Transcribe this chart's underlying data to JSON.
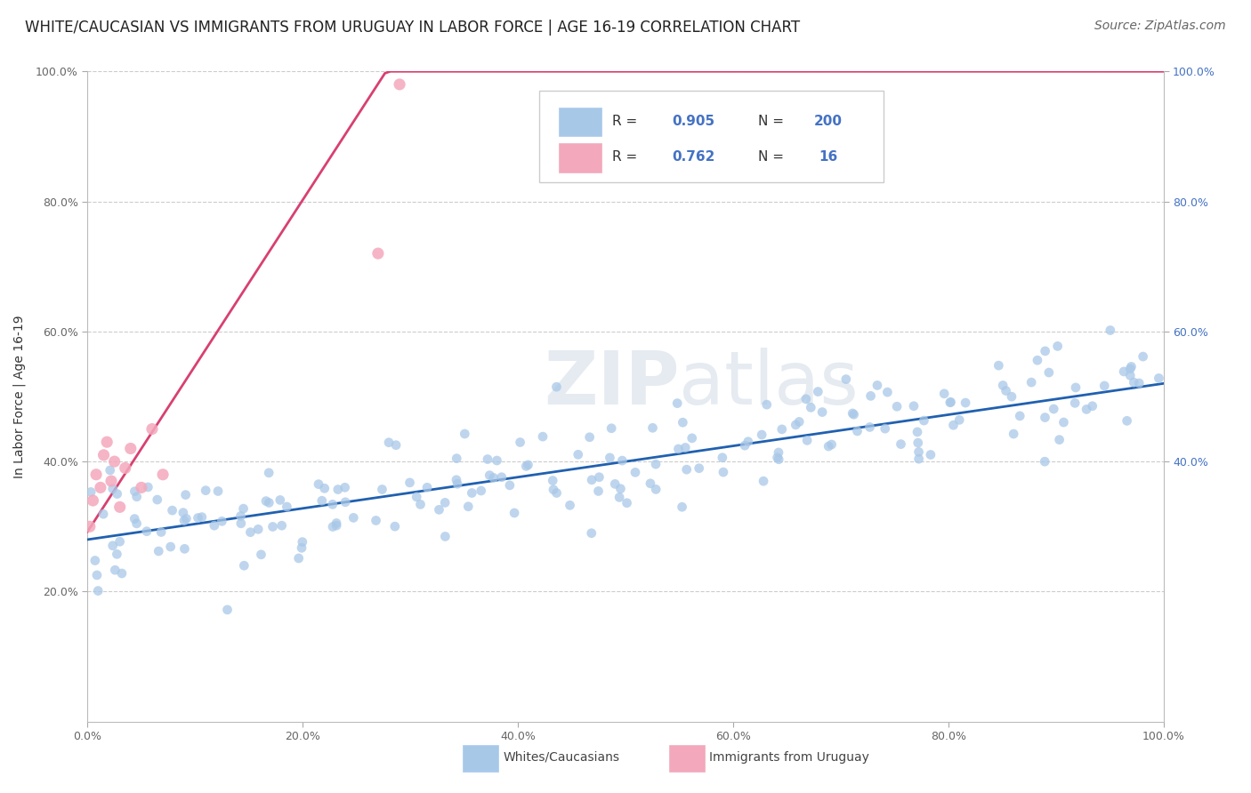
{
  "title": "WHITE/CAUCASIAN VS IMMIGRANTS FROM URUGUAY IN LABOR FORCE | AGE 16-19 CORRELATION CHART",
  "source": "Source: ZipAtlas.com",
  "ylabel": "In Labor Force | Age 16-19",
  "blue_R": 0.905,
  "blue_N": 200,
  "pink_R": 0.762,
  "pink_N": 16,
  "blue_color": "#a8c8e8",
  "pink_color": "#f4a8bc",
  "blue_line_color": "#2060b0",
  "pink_line_color": "#d84070",
  "xlim": [
    0,
    1
  ],
  "ylim": [
    0,
    1
  ],
  "legend_label_blue": "Whites/Caucasians",
  "legend_label_pink": "Immigrants from Uruguay",
  "background_color": "#ffffff",
  "grid_color": "#cccccc",
  "text_color": "#4472c4",
  "label_color": "#333333",
  "tick_color": "#666666",
  "right_tick_color": "#4472c4",
  "title_fontsize": 12,
  "source_fontsize": 10,
  "axis_label_fontsize": 10,
  "tick_fontsize": 9
}
